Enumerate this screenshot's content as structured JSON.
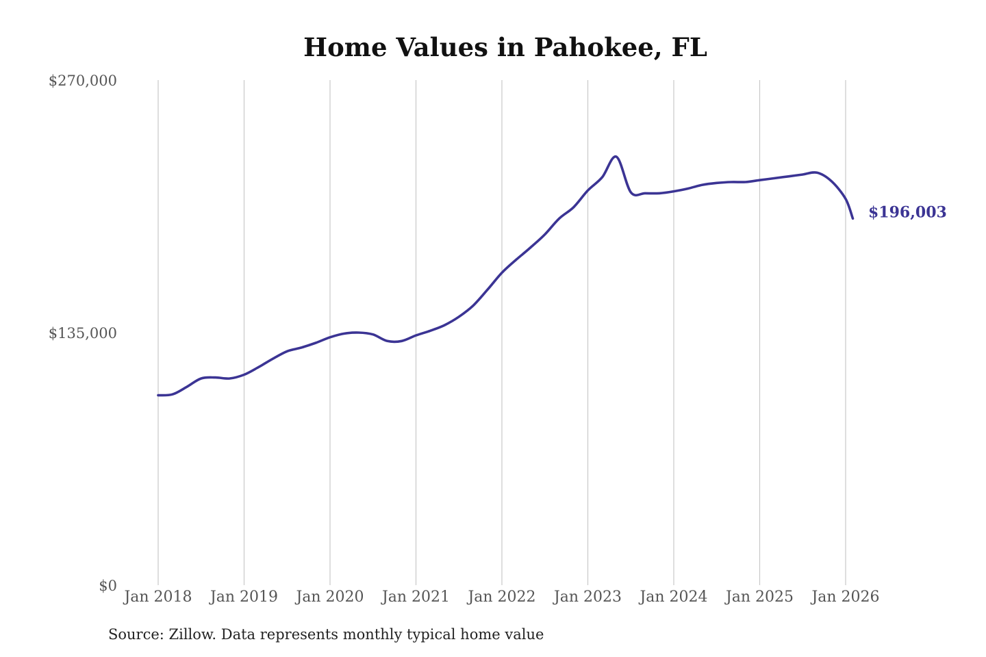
{
  "chart_data": {
    "type": "line",
    "title": "Home Values in Pahokee, FL",
    "xlabel": "",
    "ylabel": "",
    "ylim": [
      0,
      270000
    ],
    "y_ticks": [
      {
        "value": 0,
        "label": "$0"
      },
      {
        "value": 135000,
        "label": "$135,000"
      },
      {
        "value": 270000,
        "label": "$270,000"
      }
    ],
    "x_ticks": [
      {
        "value": "2018-01",
        "label": "Jan 2018"
      },
      {
        "value": "2019-01",
        "label": "Jan 2019"
      },
      {
        "value": "2020-01",
        "label": "Jan 2020"
      },
      {
        "value": "2021-01",
        "label": "Jan 2021"
      },
      {
        "value": "2022-01",
        "label": "Jan 2022"
      },
      {
        "value": "2023-01",
        "label": "Jan 2023"
      },
      {
        "value": "2024-01",
        "label": "Jan 2024"
      },
      {
        "value": "2025-01",
        "label": "Jan 2025"
      },
      {
        "value": "2026-01",
        "label": "Jan 2026"
      }
    ],
    "grid": {
      "vertical": true,
      "horizontal": false
    },
    "line_color": "#3b3494",
    "grid_color": "#c8c8c8",
    "series": [
      {
        "name": "",
        "x": [
          "2018-01",
          "2018-03",
          "2018-05",
          "2018-07",
          "2018-09",
          "2018-11",
          "2019-01",
          "2019-03",
          "2019-05",
          "2019-07",
          "2019-09",
          "2019-11",
          "2020-01",
          "2020-03",
          "2020-05",
          "2020-07",
          "2020-09",
          "2020-11",
          "2021-01",
          "2021-03",
          "2021-05",
          "2021-07",
          "2021-09",
          "2021-11",
          "2022-01",
          "2022-03",
          "2022-05",
          "2022-07",
          "2022-09",
          "2022-11",
          "2023-01",
          "2023-03",
          "2023-05",
          "2023-07",
          "2023-09",
          "2023-11",
          "2024-01",
          "2024-03",
          "2024-05",
          "2024-07",
          "2024-09",
          "2024-11",
          "2025-01",
          "2025-03",
          "2025-05",
          "2025-07",
          "2025-09",
          "2025-11",
          "2026-01",
          "2026-02"
        ],
        "values": [
          101500,
          102000,
          106000,
          110500,
          111000,
          110500,
          112500,
          116500,
          121000,
          125000,
          127000,
          129500,
          132500,
          134500,
          135000,
          134000,
          130500,
          130500,
          133500,
          136000,
          139000,
          143500,
          149500,
          158000,
          167000,
          174000,
          180500,
          187500,
          196000,
          202000,
          211000,
          218000,
          229000,
          210000,
          209500,
          209500,
          210500,
          212000,
          214000,
          215000,
          215500,
          215500,
          216500,
          217500,
          218500,
          219500,
          220500,
          216000,
          206500,
          196003
        ]
      }
    ],
    "end_label": "$196,003",
    "note": "Source: Zillow. Data represents monthly typical home value"
  }
}
